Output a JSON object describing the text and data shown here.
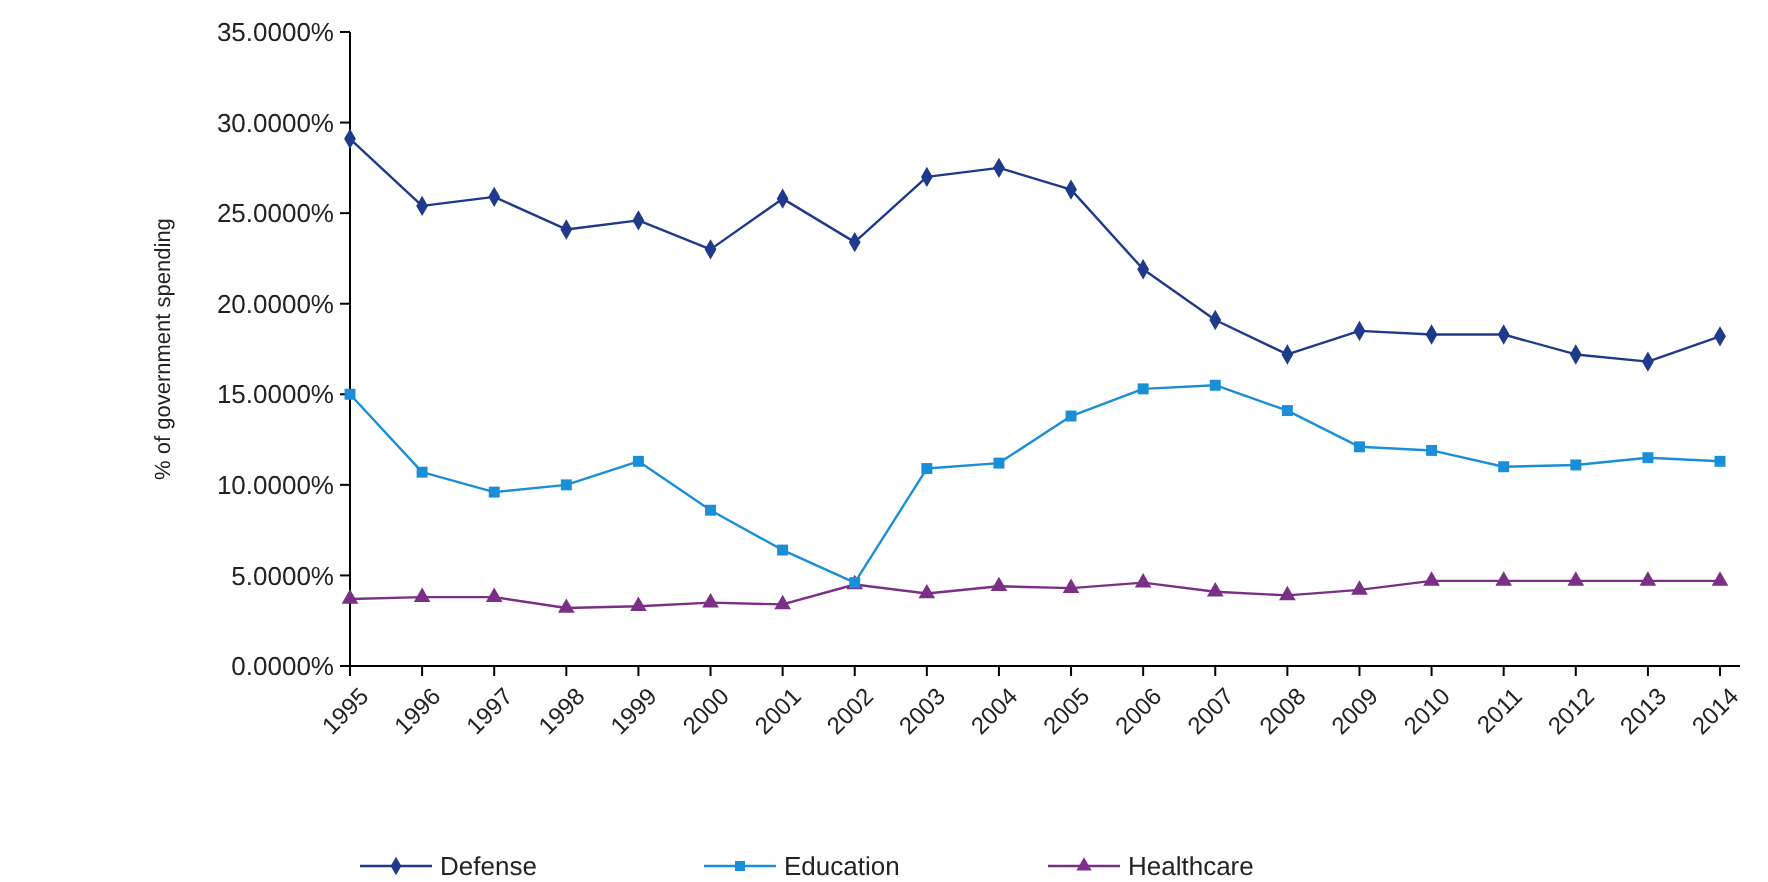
{
  "chart_data": {
    "type": "line",
    "ylabel": "% of government spending",
    "categories": [
      "1995",
      "1996",
      "1997",
      "1998",
      "1999",
      "2000",
      "2001",
      "2002",
      "2003",
      "2004",
      "2005",
      "2006",
      "2007",
      "2008",
      "2009",
      "2010",
      "2011",
      "2012",
      "2013",
      "2014"
    ],
    "series": [
      {
        "name": "Defense",
        "color": "#1f3a8a",
        "marker": "diamond",
        "values": [
          29.1,
          25.4,
          25.9,
          24.1,
          24.6,
          23.0,
          25.8,
          23.4,
          27.0,
          27.5,
          26.3,
          21.9,
          19.1,
          17.2,
          18.5,
          18.3,
          18.3,
          17.2,
          16.8,
          18.2
        ]
      },
      {
        "name": "Education",
        "color": "#1a8fd8",
        "marker": "square",
        "values": [
          15.0,
          10.7,
          9.6,
          10.0,
          11.3,
          8.6,
          6.4,
          4.6,
          10.9,
          11.2,
          13.8,
          15.3,
          15.5,
          14.1,
          12.1,
          11.9,
          11.0,
          11.1,
          11.5,
          11.3
        ]
      },
      {
        "name": "Healthcare",
        "color": "#7b2f86",
        "marker": "triangle",
        "values": [
          3.7,
          3.8,
          3.8,
          3.2,
          3.3,
          3.5,
          3.4,
          4.5,
          4.0,
          4.4,
          4.3,
          4.6,
          4.1,
          3.9,
          4.2,
          4.7,
          4.7,
          4.7,
          4.7,
          4.7
        ]
      }
    ],
    "ylim": [
      0,
      35
    ],
    "yticks": [
      {
        "value": 0,
        "label": "0.0000%"
      },
      {
        "value": 5,
        "label": "5.0000%"
      },
      {
        "value": 10,
        "label": "10.0000%"
      },
      {
        "value": 15,
        "label": "15.0000%"
      },
      {
        "value": 20,
        "label": "20.0000%"
      },
      {
        "value": 25,
        "label": "25.0000%"
      },
      {
        "value": 30,
        "label": "30.0000%"
      },
      {
        "value": 35,
        "label": "35.0000%"
      }
    ],
    "grid": false,
    "legend": "bottom",
    "line_style": "solid"
  }
}
